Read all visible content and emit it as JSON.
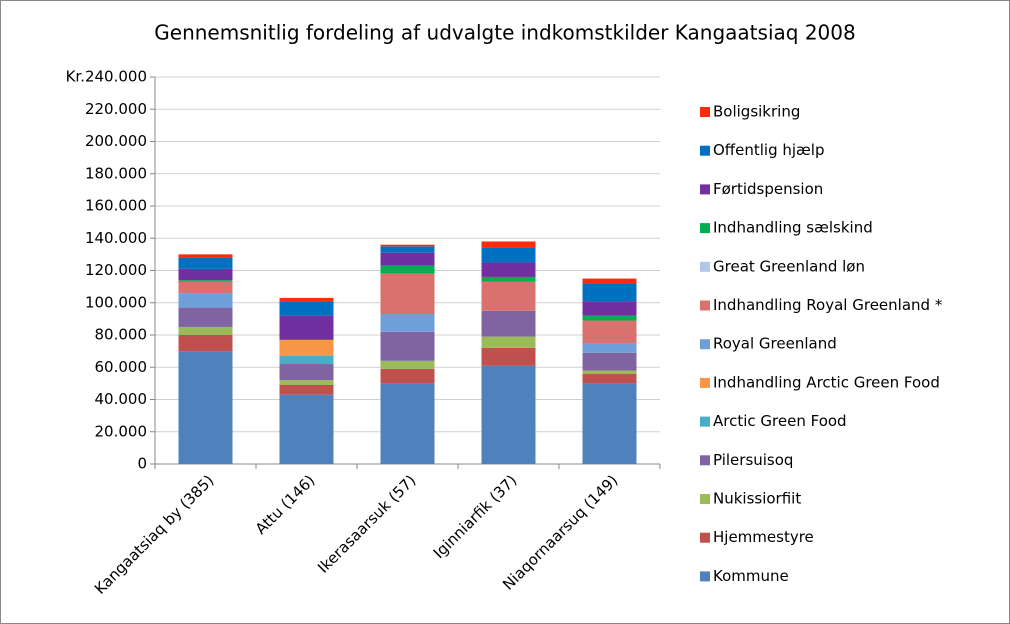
{
  "chart_data": {
    "type": "stacked_bar",
    "title": "Gennemsnitlig fordeling af udvalgte indkomstkilder Kangaatsiaq 2008",
    "categories": [
      "Kangaatsiaq by (385)",
      "Attu (146)",
      "Ikerasaarsuk (57)",
      "Iginniarfik (37)",
      "Niaqornaarsuq (149)"
    ],
    "series": [
      {
        "name": "Kommune",
        "color": "#4f81bd",
        "values": [
          70000,
          43000,
          50000,
          61000,
          50000
        ]
      },
      {
        "name": "Hjemmestyre",
        "color": "#c0504d",
        "values": [
          10000,
          6000,
          9000,
          11000,
          6000
        ]
      },
      {
        "name": "Nukissiorfiit",
        "color": "#9bbb59",
        "values": [
          5000,
          3000,
          5000,
          7000,
          2000
        ]
      },
      {
        "name": "Pilersuisoq",
        "color": "#8064a2",
        "values": [
          12000,
          10000,
          18000,
          16000,
          11000
        ]
      },
      {
        "name": "Arctic Green Food",
        "color": "#4bacc6",
        "values": [
          0,
          5000,
          0,
          0,
          0
        ]
      },
      {
        "name": "Indhandling Arctic Green Food",
        "color": "#f79646",
        "values": [
          0,
          10000,
          0,
          0,
          0
        ]
      },
      {
        "name": "Royal Greenland",
        "color": "#6f9fd8",
        "values": [
          9000,
          0,
          11000,
          0,
          6000
        ]
      },
      {
        "name": "Indhandling Royal Greenland *",
        "color": "#d9726f",
        "values": [
          7000,
          0,
          25000,
          18000,
          14000
        ]
      },
      {
        "name": "Great Greenland løn",
        "color": "#b3c6e7",
        "values": [
          0,
          0,
          0,
          0,
          0
        ]
      },
      {
        "name": "Indhandling sælskind",
        "color": "#00b050",
        "values": [
          1000,
          0,
          5000,
          3000,
          3000
        ]
      },
      {
        "name": "Førtidspension",
        "color": "#7030a0",
        "values": [
          7000,
          15000,
          8000,
          9000,
          9000
        ]
      },
      {
        "name": "Offentlig hjælp",
        "color": "#0070c0",
        "values": [
          7000,
          9000,
          4000,
          9000,
          11000
        ]
      },
      {
        "name": "Boligsikring",
        "color": "#ff2a0a",
        "values": [
          2000,
          2000,
          1000,
          4000,
          3000
        ]
      }
    ],
    "ylim": [
      0,
      240000
    ],
    "yticks": [
      0,
      {
        "value": 20000,
        "label": "20.000"
      },
      {
        "value": 40000,
        "label": "40.000"
      },
      {
        "value": 60000,
        "label": "60.000"
      },
      {
        "value": 80000,
        "label": "80.000"
      },
      {
        "value": 100000,
        "label": "100.000"
      },
      {
        "value": 120000,
        "label": "120.000"
      },
      {
        "value": 140000,
        "label": "140.000"
      },
      {
        "value": 160000,
        "label": "160.000"
      },
      {
        "value": 180000,
        "label": "180.000"
      },
      {
        "value": 200000,
        "label": "200.000"
      },
      {
        "value": 220000,
        "label": "220.000"
      },
      {
        "value": 240000,
        "label": "Kr.240.000"
      }
    ],
    "grid": true
  }
}
